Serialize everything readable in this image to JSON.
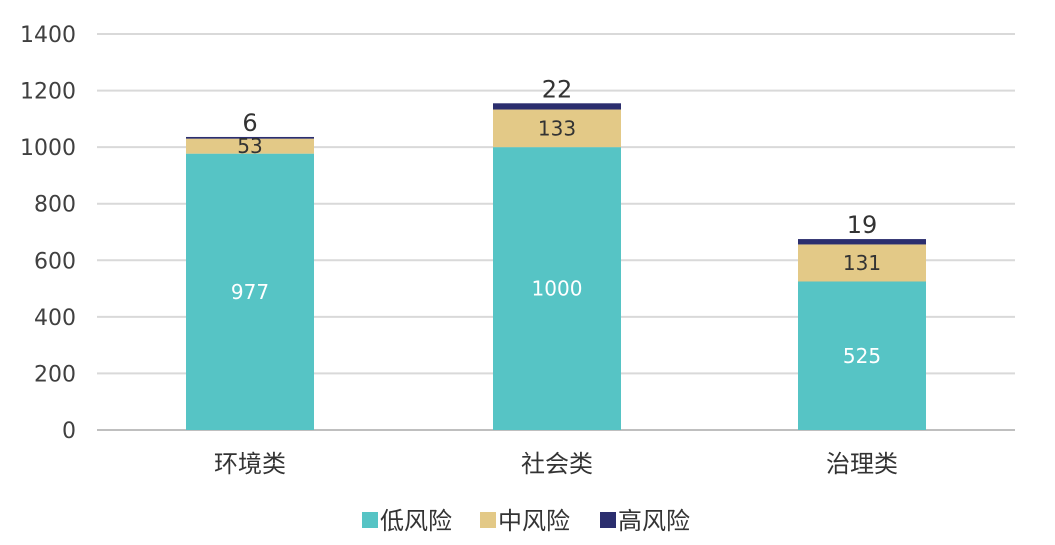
{
  "chart_data": {
    "type": "bar",
    "stacked": true,
    "categories": [
      "环境类",
      "社会类",
      "治理类"
    ],
    "series": [
      {
        "name": "低风险",
        "values": [
          977,
          1000,
          525
        ],
        "color": "#56C4C5"
      },
      {
        "name": "中风险",
        "values": [
          53,
          133,
          131
        ],
        "color": "#E3C987"
      },
      {
        "name": "高风险",
        "values": [
          6,
          22,
          19
        ],
        "color": "#2B2E6E"
      }
    ],
    "ylim": [
      0,
      1400
    ],
    "yticks": [
      0,
      200,
      400,
      600,
      800,
      1000,
      1200,
      1400
    ],
    "grid": true,
    "legend": "bottom",
    "data_labels": true
  }
}
